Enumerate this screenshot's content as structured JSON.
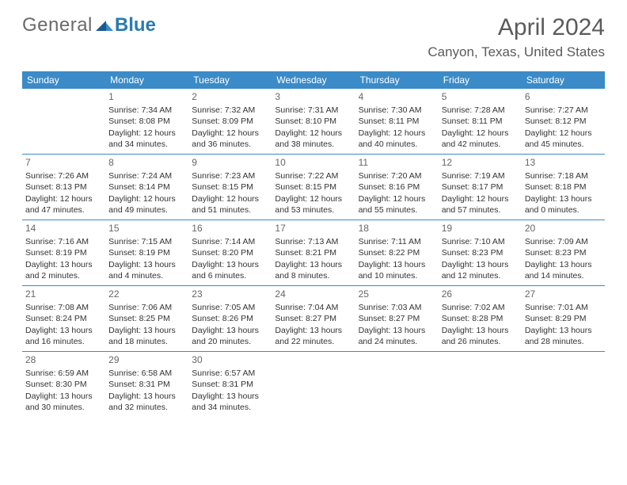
{
  "brand": {
    "part1": "General",
    "part2": "Blue"
  },
  "title": "April 2024",
  "location": "Canyon, Texas, United States",
  "colors": {
    "header_bg": "#3a8bc8",
    "header_text": "#ffffff",
    "row_border": "#3a8bc8",
    "body_text": "#333333",
    "logo_gray": "#6a6a6a",
    "logo_blue": "#2a7ab0"
  },
  "weekdays": [
    "Sunday",
    "Monday",
    "Tuesday",
    "Wednesday",
    "Thursday",
    "Friday",
    "Saturday"
  ],
  "weeks": [
    [
      null,
      {
        "n": "1",
        "sr": "7:34 AM",
        "ss": "8:08 PM",
        "dl": "12 hours and 34 minutes."
      },
      {
        "n": "2",
        "sr": "7:32 AM",
        "ss": "8:09 PM",
        "dl": "12 hours and 36 minutes."
      },
      {
        "n": "3",
        "sr": "7:31 AM",
        "ss": "8:10 PM",
        "dl": "12 hours and 38 minutes."
      },
      {
        "n": "4",
        "sr": "7:30 AM",
        "ss": "8:11 PM",
        "dl": "12 hours and 40 minutes."
      },
      {
        "n": "5",
        "sr": "7:28 AM",
        "ss": "8:11 PM",
        "dl": "12 hours and 42 minutes."
      },
      {
        "n": "6",
        "sr": "7:27 AM",
        "ss": "8:12 PM",
        "dl": "12 hours and 45 minutes."
      }
    ],
    [
      {
        "n": "7",
        "sr": "7:26 AM",
        "ss": "8:13 PM",
        "dl": "12 hours and 47 minutes."
      },
      {
        "n": "8",
        "sr": "7:24 AM",
        "ss": "8:14 PM",
        "dl": "12 hours and 49 minutes."
      },
      {
        "n": "9",
        "sr": "7:23 AM",
        "ss": "8:15 PM",
        "dl": "12 hours and 51 minutes."
      },
      {
        "n": "10",
        "sr": "7:22 AM",
        "ss": "8:15 PM",
        "dl": "12 hours and 53 minutes."
      },
      {
        "n": "11",
        "sr": "7:20 AM",
        "ss": "8:16 PM",
        "dl": "12 hours and 55 minutes."
      },
      {
        "n": "12",
        "sr": "7:19 AM",
        "ss": "8:17 PM",
        "dl": "12 hours and 57 minutes."
      },
      {
        "n": "13",
        "sr": "7:18 AM",
        "ss": "8:18 PM",
        "dl": "13 hours and 0 minutes."
      }
    ],
    [
      {
        "n": "14",
        "sr": "7:16 AM",
        "ss": "8:19 PM",
        "dl": "13 hours and 2 minutes."
      },
      {
        "n": "15",
        "sr": "7:15 AM",
        "ss": "8:19 PM",
        "dl": "13 hours and 4 minutes."
      },
      {
        "n": "16",
        "sr": "7:14 AM",
        "ss": "8:20 PM",
        "dl": "13 hours and 6 minutes."
      },
      {
        "n": "17",
        "sr": "7:13 AM",
        "ss": "8:21 PM",
        "dl": "13 hours and 8 minutes."
      },
      {
        "n": "18",
        "sr": "7:11 AM",
        "ss": "8:22 PM",
        "dl": "13 hours and 10 minutes."
      },
      {
        "n": "19",
        "sr": "7:10 AM",
        "ss": "8:23 PM",
        "dl": "13 hours and 12 minutes."
      },
      {
        "n": "20",
        "sr": "7:09 AM",
        "ss": "8:23 PM",
        "dl": "13 hours and 14 minutes."
      }
    ],
    [
      {
        "n": "21",
        "sr": "7:08 AM",
        "ss": "8:24 PM",
        "dl": "13 hours and 16 minutes."
      },
      {
        "n": "22",
        "sr": "7:06 AM",
        "ss": "8:25 PM",
        "dl": "13 hours and 18 minutes."
      },
      {
        "n": "23",
        "sr": "7:05 AM",
        "ss": "8:26 PM",
        "dl": "13 hours and 20 minutes."
      },
      {
        "n": "24",
        "sr": "7:04 AM",
        "ss": "8:27 PM",
        "dl": "13 hours and 22 minutes."
      },
      {
        "n": "25",
        "sr": "7:03 AM",
        "ss": "8:27 PM",
        "dl": "13 hours and 24 minutes."
      },
      {
        "n": "26",
        "sr": "7:02 AM",
        "ss": "8:28 PM",
        "dl": "13 hours and 26 minutes."
      },
      {
        "n": "27",
        "sr": "7:01 AM",
        "ss": "8:29 PM",
        "dl": "13 hours and 28 minutes."
      }
    ],
    [
      {
        "n": "28",
        "sr": "6:59 AM",
        "ss": "8:30 PM",
        "dl": "13 hours and 30 minutes."
      },
      {
        "n": "29",
        "sr": "6:58 AM",
        "ss": "8:31 PM",
        "dl": "13 hours and 32 minutes."
      },
      {
        "n": "30",
        "sr": "6:57 AM",
        "ss": "8:31 PM",
        "dl": "13 hours and 34 minutes."
      },
      null,
      null,
      null,
      null
    ]
  ],
  "labels": {
    "sunrise": "Sunrise:",
    "sunset": "Sunset:",
    "daylight": "Daylight:"
  }
}
